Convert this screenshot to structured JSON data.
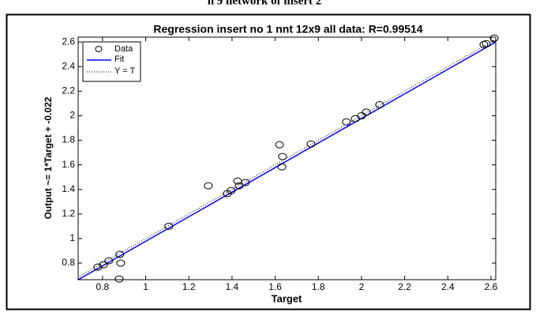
{
  "header": {
    "clipped_title": "n 9 network of insert 2"
  },
  "chart_data": {
    "type": "regression",
    "title": "Regression insert no 1 nnt 12x9 all data: R=0.99514",
    "x_label": "Target",
    "y_label": "Output ~= 1*Target + -0.022",
    "xlim": [
      0.687,
      2.622
    ],
    "ylim": [
      0.665,
      2.64
    ],
    "xticks": [
      0.8,
      1,
      1.2,
      1.4,
      1.6,
      1.8,
      2,
      2.2,
      2.4,
      2.6
    ],
    "yticks": [
      0.8,
      1,
      1.2,
      1.4,
      1.6,
      1.8,
      2,
      2.2,
      2.4,
      2.6
    ],
    "fit": {
      "slope": 1,
      "intercept": -0.022,
      "color": "#0000ff"
    },
    "legend": {
      "data": "Data",
      "fit": "Fit",
      "identity": "Y = T",
      "position": "upper left"
    },
    "series": [
      {
        "name": "Data",
        "color": "#000000",
        "x": [
          0.778,
          0.804,
          0.829,
          0.88,
          0.884,
          0.877,
          1.107,
          1.29,
          1.378,
          1.396,
          1.426,
          1.433,
          1.462,
          1.62,
          1.634,
          1.631,
          1.766,
          1.93,
          1.971,
          2.0,
          2.022,
          2.084,
          2.567,
          2.578,
          2.615
        ],
        "values": [
          0.768,
          0.787,
          0.819,
          0.871,
          0.8,
          0.671,
          1.1,
          1.43,
          1.366,
          1.39,
          1.468,
          1.43,
          1.456,
          1.764,
          1.668,
          1.584,
          1.77,
          1.95,
          1.976,
          2.0,
          2.03,
          2.09,
          2.58,
          2.587,
          2.632
        ]
      }
    ]
  }
}
